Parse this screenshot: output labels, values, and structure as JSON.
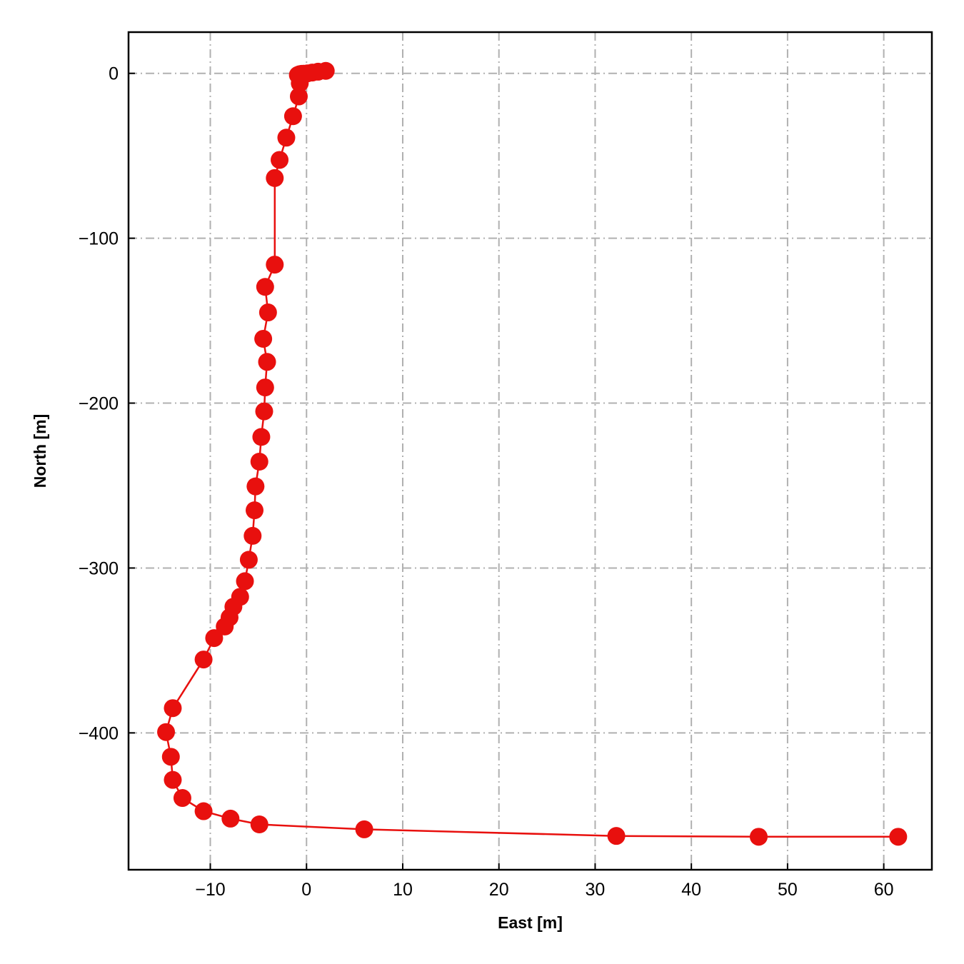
{
  "chart_data": {
    "type": "line",
    "title": "",
    "xlabel": "East [m]",
    "ylabel": "North [m]",
    "xlim": [
      -18.5,
      65
    ],
    "ylim": [
      -483,
      25
    ],
    "grid": true,
    "xticks": [
      -10,
      0,
      10,
      20,
      30,
      40,
      50,
      60
    ],
    "yticks": [
      0,
      -100,
      -200,
      -300,
      -400
    ],
    "xtick_labels": [
      "−10",
      "0",
      "10",
      "20",
      "30",
      "40",
      "50",
      "60"
    ],
    "ytick_labels": [
      "0",
      "−100",
      "−200",
      "−300",
      "−400"
    ],
    "series": [
      {
        "color": "#e8100e",
        "marker": "circle",
        "x": [
          2.0,
          1.2,
          0.6,
          0.1,
          -0.3,
          -0.5,
          -0.7,
          -0.9,
          -0.7,
          -0.8,
          -1.4,
          -2.1,
          -2.8,
          -3.3,
          -3.3,
          -4.3,
          -4.0,
          -4.5,
          -4.1,
          -4.3,
          -4.4,
          -4.7,
          -4.9,
          -5.3,
          -5.4,
          -5.6,
          -6.0,
          -6.4,
          -6.9,
          -7.6,
          -8.0,
          -8.5,
          -9.6,
          -10.7,
          -13.9,
          -14.6,
          -14.1,
          -13.9,
          -12.9,
          -10.7,
          -7.9,
          -4.9,
          6.0,
          32.2,
          47.0,
          61.5
        ],
        "y": [
          1.5,
          1.0,
          0.5,
          0.0,
          -0.2,
          -0.3,
          -0.5,
          -1.0,
          -6.0,
          -14.0,
          -26.0,
          -39.0,
          -52.5,
          -63.5,
          -116.0,
          -129.5,
          -145.0,
          -161.0,
          -175.0,
          -190.5,
          -205.0,
          -220.5,
          -235.5,
          -250.5,
          -265.0,
          -280.5,
          -295.0,
          -308.0,
          -317.5,
          -323.5,
          -330.0,
          -335.5,
          -342.5,
          -355.5,
          -385.0,
          -399.5,
          -414.5,
          -428.5,
          -439.5,
          -447.5,
          -452.0,
          -455.5,
          -458.5,
          -462.5,
          -463.0,
          -463.0
        ]
      }
    ]
  }
}
